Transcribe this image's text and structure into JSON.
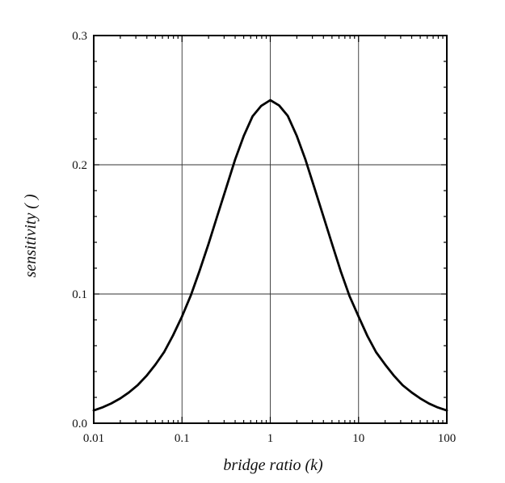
{
  "chart_data": {
    "type": "line",
    "xlabel": "bridge ratio (k)",
    "ylabel": "sensitivity ( )",
    "xscale": "log",
    "xlim": [
      0.01,
      100
    ],
    "ylim": [
      0.0,
      0.3
    ],
    "grid": true,
    "legend": "none",
    "x_ticks": [
      "0.01",
      "0.1",
      "1",
      "10",
      "100"
    ],
    "y_ticks": [
      "0.0",
      "0.1",
      "0.2",
      "0.3"
    ],
    "series": [
      {
        "color": "#000000",
        "x": [
          0.01,
          0.0125,
          0.0158,
          0.02,
          0.025,
          0.0316,
          0.04,
          0.05,
          0.063,
          0.079,
          0.1,
          0.126,
          0.158,
          0.2,
          0.25,
          0.316,
          0.4,
          0.5,
          0.63,
          0.79,
          1.0,
          1.26,
          1.58,
          2.0,
          2.5,
          3.16,
          4.0,
          5.0,
          6.3,
          7.9,
          10.0,
          12.6,
          15.8,
          20.0,
          25.0,
          31.6,
          40.0,
          50.0,
          63.0,
          79.0,
          100.0
        ],
        "y": [
          0.0099,
          0.0122,
          0.0153,
          0.0192,
          0.0238,
          0.0296,
          0.037,
          0.0454,
          0.0553,
          0.0679,
          0.0826,
          0.099,
          0.1179,
          0.1389,
          0.16,
          0.1819,
          0.2041,
          0.2222,
          0.2375,
          0.2456,
          0.25,
          0.2459,
          0.2378,
          0.2222,
          0.2041,
          0.1822,
          0.16,
          0.1389,
          0.1174,
          0.0984,
          0.0826,
          0.0675,
          0.055,
          0.0454,
          0.037,
          0.0294,
          0.0238,
          0.0192,
          0.0152,
          0.0122,
          0.0099
        ]
      }
    ]
  }
}
